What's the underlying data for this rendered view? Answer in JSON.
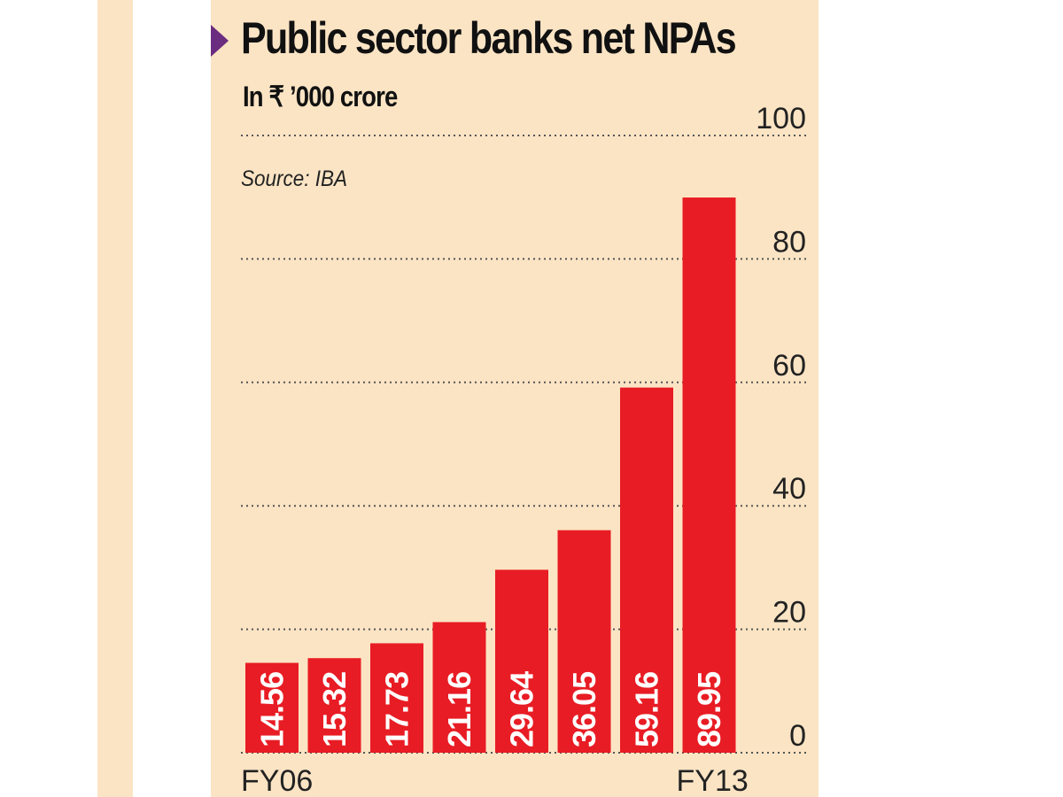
{
  "chart_data": {
    "type": "bar",
    "title": "Public sector banks net NPAs",
    "subtitle": "In ₹ ’000 crore",
    "source": "Source: IBA",
    "values": [
      14.56,
      15.32,
      17.73,
      21.16,
      29.64,
      36.05,
      59.16,
      89.95
    ],
    "value_labels": [
      "14.56",
      "15.32",
      "17.73",
      "21.16",
      "29.64",
      "36.05",
      "59.16",
      "89.95"
    ],
    "x_tick_labels": [
      "FY06",
      "FY13"
    ],
    "y_ticks": [
      0,
      20,
      40,
      60,
      80,
      100
    ],
    "ylim": [
      0,
      100
    ],
    "grid": "dotted horizontal",
    "y_axis_position": "right",
    "colors": {
      "bar": "#e81c24",
      "panel": "#fbe4c4",
      "marker": "#6b2d7f"
    }
  }
}
